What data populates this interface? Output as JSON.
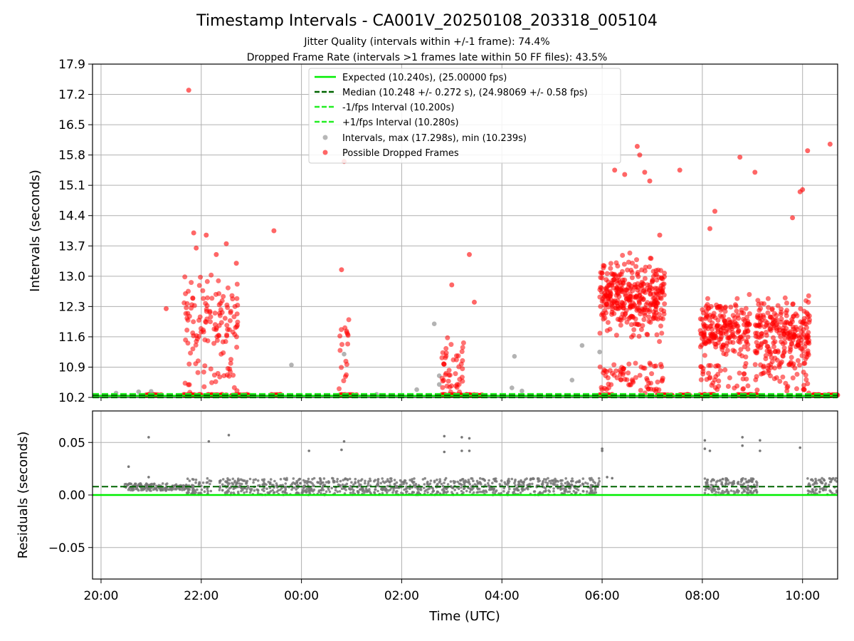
{
  "figure": {
    "title": "Timestamp Intervals - CA001V_20250108_203318_005104",
    "subtitle_jitter": "Jitter Quality (intervals within +/-1 frame): 74.4%",
    "subtitle_dropped": "Dropped Frame Rate (intervals >1 frames late within 50 FF files): 43.5%",
    "xlabel": "Time (UTC)"
  },
  "colors": {
    "expected": "#00ee00",
    "median": "#006400",
    "fps_bounds": "#22ee22",
    "intervals": "#999999",
    "dropped": "#ff0000",
    "residuals": "#777777",
    "grid": "#b0b0b0"
  },
  "chart_data": [
    {
      "type": "scatter",
      "panel": "intervals",
      "ylabel": "Intervals (seconds)",
      "ylim": [
        10.2,
        17.9
      ],
      "yticks": [
        "10.2",
        "10.9",
        "11.6",
        "12.3",
        "13.0",
        "13.7",
        "14.4",
        "15.1",
        "15.8",
        "16.5",
        "17.2",
        "17.9"
      ],
      "xlim_hours": [
        19.83,
        34.7
      ],
      "xticks": [
        "20:00",
        "22:00",
        "00:00",
        "02:00",
        "04:00",
        "06:00",
        "08:00",
        "10:00"
      ],
      "grid": true,
      "legend_placement": "top-center",
      "reference_lines": {
        "expected": 10.24,
        "median": 10.248,
        "minus_fps": 10.2,
        "plus_fps": 10.28
      },
      "legend": [
        "Expected (10.240s), (25.00000 fps)",
        "Median (10.248 +/- 0.272 s), (24.98069 +/- 0.58 fps)",
        "-1/fps Interval (10.200s)",
        "+1/fps Interval (10.280s)",
        "Intervals, max (17.298s), min (10.239s)",
        "Possible Dropped Frames"
      ],
      "clusters": [
        {
          "from": 21.65,
          "to": 22.75,
          "peak": 12.0,
          "spread": 0.8,
          "count": 140
        },
        {
          "from": 24.75,
          "to": 24.95,
          "peak": 11.5,
          "spread": 0.6,
          "count": 18
        },
        {
          "from": 26.8,
          "to": 27.25,
          "peak": 10.9,
          "spread": 0.55,
          "count": 45
        },
        {
          "from": 29.95,
          "to": 31.25,
          "peak": 12.5,
          "spread": 0.75,
          "count": 420
        },
        {
          "from": 31.95,
          "to": 32.95,
          "peak": 11.8,
          "spread": 0.6,
          "count": 240
        },
        {
          "from": 33.05,
          "to": 34.15,
          "peak": 11.7,
          "spread": 0.65,
          "count": 280
        }
      ],
      "baseline_segments": [
        {
          "from": 20.9,
          "to": 21.2
        },
        {
          "from": 21.65,
          "to": 22.0
        },
        {
          "from": 22.1,
          "to": 22.5
        },
        {
          "from": 22.6,
          "to": 22.95
        },
        {
          "from": 23.4,
          "to": 23.6
        },
        {
          "from": 24.75,
          "to": 25.1
        },
        {
          "from": 26.8,
          "to": 27.6
        },
        {
          "from": 29.95,
          "to": 30.2
        },
        {
          "from": 31.1,
          "to": 31.4
        },
        {
          "from": 31.55,
          "to": 31.75
        },
        {
          "from": 31.95,
          "to": 32.25
        },
        {
          "from": 32.7,
          "to": 33.1
        },
        {
          "from": 34.2,
          "to": 34.7
        }
      ],
      "outliers": [
        {
          "x": 21.3,
          "y": 12.25
        },
        {
          "x": 21.75,
          "y": 17.298
        },
        {
          "x": 21.85,
          "y": 14.0
        },
        {
          "x": 21.9,
          "y": 13.65
        },
        {
          "x": 22.1,
          "y": 13.95
        },
        {
          "x": 22.3,
          "y": 13.5
        },
        {
          "x": 22.5,
          "y": 13.75
        },
        {
          "x": 22.7,
          "y": 13.3
        },
        {
          "x": 23.45,
          "y": 14.05
        },
        {
          "x": 24.85,
          "y": 15.65
        },
        {
          "x": 24.8,
          "y": 13.15
        },
        {
          "x": 27.0,
          "y": 12.8
        },
        {
          "x": 27.45,
          "y": 12.4
        },
        {
          "x": 27.35,
          "y": 13.5
        },
        {
          "x": 30.25,
          "y": 15.45
        },
        {
          "x": 30.45,
          "y": 15.35
        },
        {
          "x": 30.7,
          "y": 16.0
        },
        {
          "x": 30.75,
          "y": 15.8
        },
        {
          "x": 30.85,
          "y": 15.4
        },
        {
          "x": 30.95,
          "y": 15.2
        },
        {
          "x": 31.15,
          "y": 13.95
        },
        {
          "x": 31.55,
          "y": 15.45
        },
        {
          "x": 32.15,
          "y": 14.1
        },
        {
          "x": 32.25,
          "y": 14.5
        },
        {
          "x": 32.75,
          "y": 15.75
        },
        {
          "x": 33.05,
          "y": 15.4
        },
        {
          "x": 33.8,
          "y": 14.35
        },
        {
          "x": 33.95,
          "y": 14.95
        },
        {
          "x": 34.0,
          "y": 15.0
        },
        {
          "x": 34.1,
          "y": 15.9
        },
        {
          "x": 34.55,
          "y": 16.05
        }
      ],
      "gray_points": [
        {
          "x": 20.3,
          "y": 10.3
        },
        {
          "x": 20.75,
          "y": 10.33
        },
        {
          "x": 21.0,
          "y": 10.34
        },
        {
          "x": 23.8,
          "y": 10.95
        },
        {
          "x": 24.85,
          "y": 11.2
        },
        {
          "x": 25.5,
          "y": 10.27
        },
        {
          "x": 26.3,
          "y": 10.38
        },
        {
          "x": 26.75,
          "y": 10.7
        },
        {
          "x": 26.75,
          "y": 10.5
        },
        {
          "x": 26.65,
          "y": 11.9
        },
        {
          "x": 28.2,
          "y": 10.42
        },
        {
          "x": 28.25,
          "y": 11.15
        },
        {
          "x": 28.4,
          "y": 10.35
        },
        {
          "x": 29.4,
          "y": 10.6
        },
        {
          "x": 29.6,
          "y": 11.4
        },
        {
          "x": 29.95,
          "y": 11.25
        }
      ]
    },
    {
      "type": "scatter",
      "panel": "residuals",
      "ylabel": "Residuals (seconds)",
      "ylim": [
        -0.08,
        0.08
      ],
      "yticks": [
        "0.05",
        "0.00",
        "−0.05"
      ],
      "grid": true,
      "reference_lines": {
        "zero": 0.0,
        "median_offset": 0.008
      },
      "bands": [
        {
          "from": 20.45,
          "to": 21.4,
          "low": 0.004,
          "high": 0.011
        },
        {
          "from": 21.4,
          "to": 21.7,
          "low": 0.004,
          "high": 0.01
        },
        {
          "from": 21.7,
          "to": 22.1,
          "low": 0.0,
          "high": 0.016
        },
        {
          "from": 22.1,
          "to": 22.2,
          "low": 0.0,
          "high": 0.016
        },
        {
          "from": 22.35,
          "to": 29.95,
          "low": 0.0,
          "high": 0.016
        },
        {
          "from": 32.05,
          "to": 33.1,
          "low": 0.0,
          "high": 0.016
        },
        {
          "from": 32.8,
          "to": 33.05,
          "low": 0.0,
          "high": 0.017
        },
        {
          "from": 34.1,
          "to": 34.7,
          "low": 0.0,
          "high": 0.016
        }
      ],
      "outliers": [
        {
          "x": 20.55,
          "y": 0.027
        },
        {
          "x": 20.95,
          "y": 0.055
        },
        {
          "x": 20.95,
          "y": 0.017
        },
        {
          "x": 22.15,
          "y": 0.051
        },
        {
          "x": 22.55,
          "y": 0.057
        },
        {
          "x": 24.15,
          "y": 0.042
        },
        {
          "x": 24.8,
          "y": 0.043
        },
        {
          "x": 24.85,
          "y": 0.051
        },
        {
          "x": 26.85,
          "y": 0.056
        },
        {
          "x": 26.85,
          "y": 0.041
        },
        {
          "x": 27.2,
          "y": 0.055
        },
        {
          "x": 27.2,
          "y": 0.042
        },
        {
          "x": 27.35,
          "y": 0.054
        },
        {
          "x": 27.35,
          "y": 0.042
        },
        {
          "x": 30.0,
          "y": 0.042
        },
        {
          "x": 30.0,
          "y": 0.044
        },
        {
          "x": 30.1,
          "y": 0.017
        },
        {
          "x": 30.2,
          "y": 0.016
        },
        {
          "x": 32.05,
          "y": 0.044
        },
        {
          "x": 32.05,
          "y": 0.052
        },
        {
          "x": 32.15,
          "y": 0.042
        },
        {
          "x": 32.8,
          "y": 0.055
        },
        {
          "x": 32.8,
          "y": 0.047
        },
        {
          "x": 33.15,
          "y": 0.052
        },
        {
          "x": 33.15,
          "y": 0.042
        },
        {
          "x": 33.95,
          "y": 0.045
        }
      ]
    }
  ]
}
